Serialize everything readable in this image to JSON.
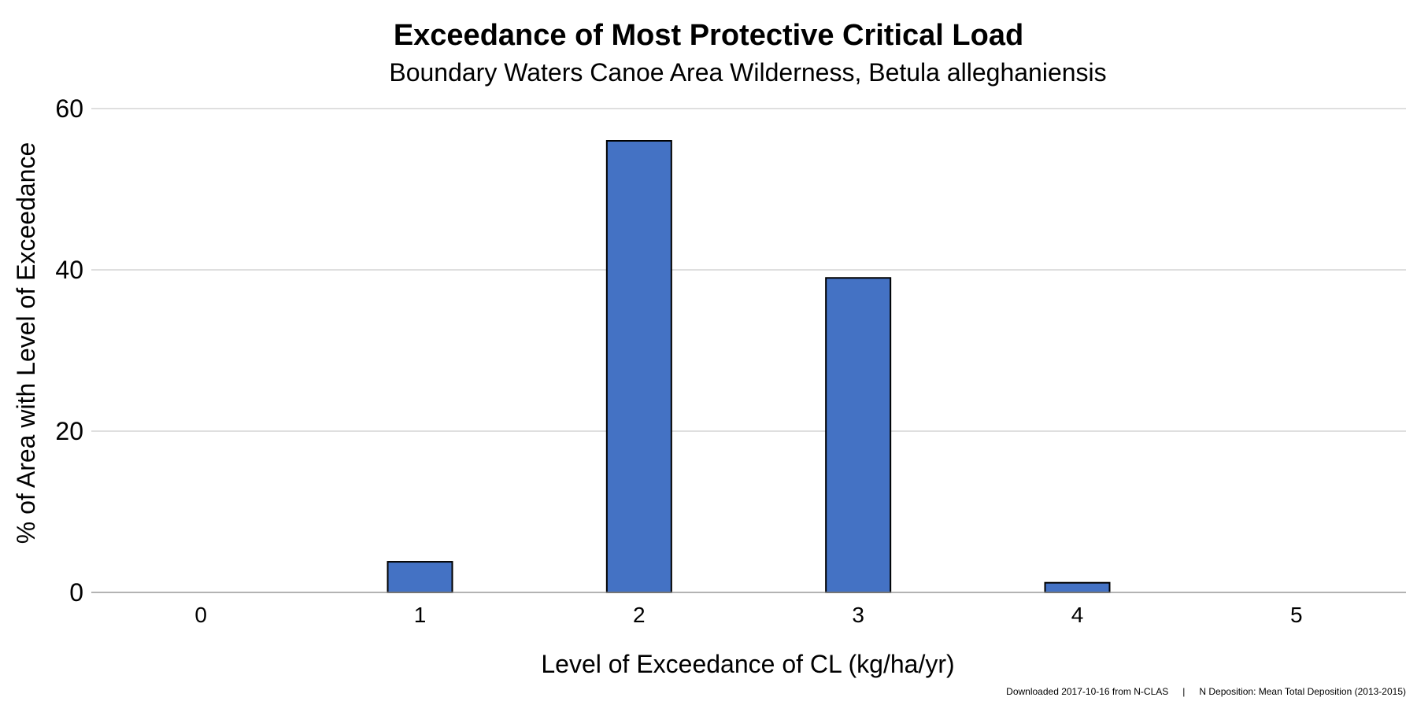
{
  "chart_data": {
    "type": "bar",
    "title": "Exceedance of Most Protective Critical Load",
    "subtitle": "Boundary Waters Canoe Area Wilderness, Betula alleghaniensis",
    "xlabel": "Level of Exceedance of CL (kg/ha/yr)",
    "ylabel": "% of Area with Level of Exceedance",
    "categories": [
      "0",
      "1",
      "2",
      "3",
      "4",
      "5"
    ],
    "values": [
      0,
      3.8,
      56.0,
      39.0,
      1.2,
      0
    ],
    "ylim": [
      0,
      60
    ],
    "yticks": [
      0,
      20,
      40,
      60
    ],
    "grid": true,
    "legend": "none",
    "bar_color": "#4472C4",
    "bar_outline_color": "#000000",
    "grid_color": "#bfbfbf"
  },
  "footer": {
    "source": "Downloaded 2017-10-16 from N-CLAS",
    "separator": "|",
    "deposition": "N Deposition: Mean Total Deposition (2013-2015)"
  }
}
